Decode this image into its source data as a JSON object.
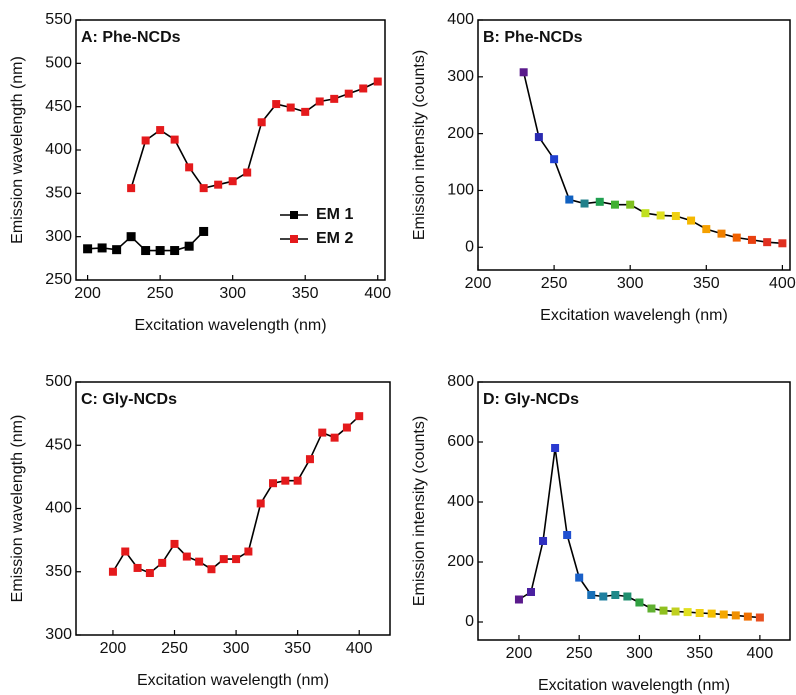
{
  "chart_data": [
    {
      "type": "line",
      "title": "A: Phe-NCDs",
      "x_label": "Excitation wavelength (nm)",
      "y_label": "Emission wavelength (nm)",
      "xlim": [
        192,
        405
      ],
      "xticks": [
        200,
        250,
        300,
        350,
        400
      ],
      "ylim": [
        250,
        550
      ],
      "yticks": [
        250,
        300,
        350,
        400,
        450,
        500,
        550
      ],
      "legend": "lower right",
      "series": [
        {
          "name": "EM 1",
          "color": "#000000",
          "x": [
            200,
            210,
            220,
            230,
            240,
            250,
            260,
            270,
            280
          ],
          "values": [
            286,
            287,
            285,
            300,
            284,
            284,
            284,
            289,
            306
          ]
        },
        {
          "name": "EM 2",
          "color": "#e41a1c",
          "x": [
            230,
            240,
            250,
            260,
            270,
            280,
            290,
            300,
            310,
            320,
            330,
            340,
            350,
            360,
            370,
            380,
            390,
            400
          ],
          "values": [
            356,
            411,
            423,
            412,
            380,
            356,
            360,
            364,
            374,
            432,
            453,
            449,
            444,
            456,
            459,
            465,
            471,
            479
          ]
        }
      ]
    },
    {
      "type": "line",
      "title": "B: Phe-NCDs",
      "x_label": "Excitation wavelengh (nm)",
      "y_label": "Emission intensity (counts)",
      "xlim": [
        200,
        405
      ],
      "xticks": [
        200,
        250,
        300,
        350,
        400
      ],
      "ylim": [
        -40,
        400
      ],
      "yticks": [
        0,
        100,
        200,
        300,
        400
      ],
      "series": [
        {
          "color": "#000000",
          "x": [
            230,
            240,
            250,
            260,
            270,
            280,
            290,
            300,
            310,
            320,
            330,
            340,
            350,
            360,
            370,
            380,
            390,
            400
          ],
          "values": [
            308,
            194,
            155,
            84,
            77,
            80,
            75,
            75,
            60,
            56,
            55,
            47,
            32,
            24,
            17,
            13,
            9,
            7
          ],
          "colors": [
            "#5a1a8c",
            "#2a2ab0",
            "#2040d0",
            "#1060c0",
            "#20808a",
            "#20a050",
            "#40b030",
            "#80c020",
            "#c0e020",
            "#e0e020",
            "#f0d010",
            "#f5b800",
            "#f5a000",
            "#f08000",
            "#f06000",
            "#e84010",
            "#e03020",
            "#e03020"
          ]
        }
      ]
    },
    {
      "type": "line",
      "title": "C: Gly-NCDs",
      "x_label": "Excitation wavelength (nm)",
      "y_label": "Emission wavelength (nm)",
      "xlim": [
        170,
        425
      ],
      "xticks": [
        200,
        250,
        300,
        350,
        400
      ],
      "ylim": [
        300,
        500
      ],
      "yticks": [
        300,
        350,
        400,
        450,
        500
      ],
      "series": [
        {
          "color": "#e41a1c",
          "x": [
            200,
            210,
            220,
            230,
            240,
            250,
            260,
            270,
            280,
            290,
            300,
            310,
            320,
            330,
            340,
            350,
            360,
            370,
            380,
            390,
            400
          ],
          "values": [
            350,
            366,
            353,
            349,
            357,
            372,
            362,
            358,
            352,
            360,
            360,
            366,
            404,
            420,
            422,
            422,
            439,
            460,
            456,
            464,
            473
          ]
        }
      ]
    },
    {
      "type": "line",
      "title": "D: Gly-NCDs",
      "x_label": "Excitation wavelength (nm)",
      "y_label": "Emission intensity (counts)",
      "xlim": [
        166,
        425
      ],
      "xticks": [
        200,
        250,
        300,
        350,
        400
      ],
      "ylim": [
        -60,
        800
      ],
      "yticks": [
        0,
        200,
        400,
        600,
        800
      ],
      "series": [
        {
          "color": "#000000",
          "x": [
            200,
            210,
            220,
            230,
            240,
            250,
            260,
            270,
            280,
            290,
            300,
            310,
            320,
            330,
            340,
            350,
            360,
            370,
            380,
            390,
            400
          ],
          "values": [
            75,
            100,
            270,
            580,
            290,
            148,
            90,
            85,
            90,
            85,
            65,
            45,
            38,
            35,
            33,
            30,
            28,
            25,
            22,
            18,
            15
          ],
          "colors": [
            "#5a1a8c",
            "#4a20a0",
            "#3030c0",
            "#2a3ad0",
            "#2050d0",
            "#1a60c8",
            "#1870b8",
            "#2080a0",
            "#208888",
            "#209070",
            "#30a040",
            "#60b030",
            "#90c020",
            "#c0d020",
            "#e0e020",
            "#f0d010",
            "#f5c000",
            "#f5a800",
            "#f09000",
            "#f07000",
            "#e85020"
          ]
        }
      ]
    }
  ]
}
